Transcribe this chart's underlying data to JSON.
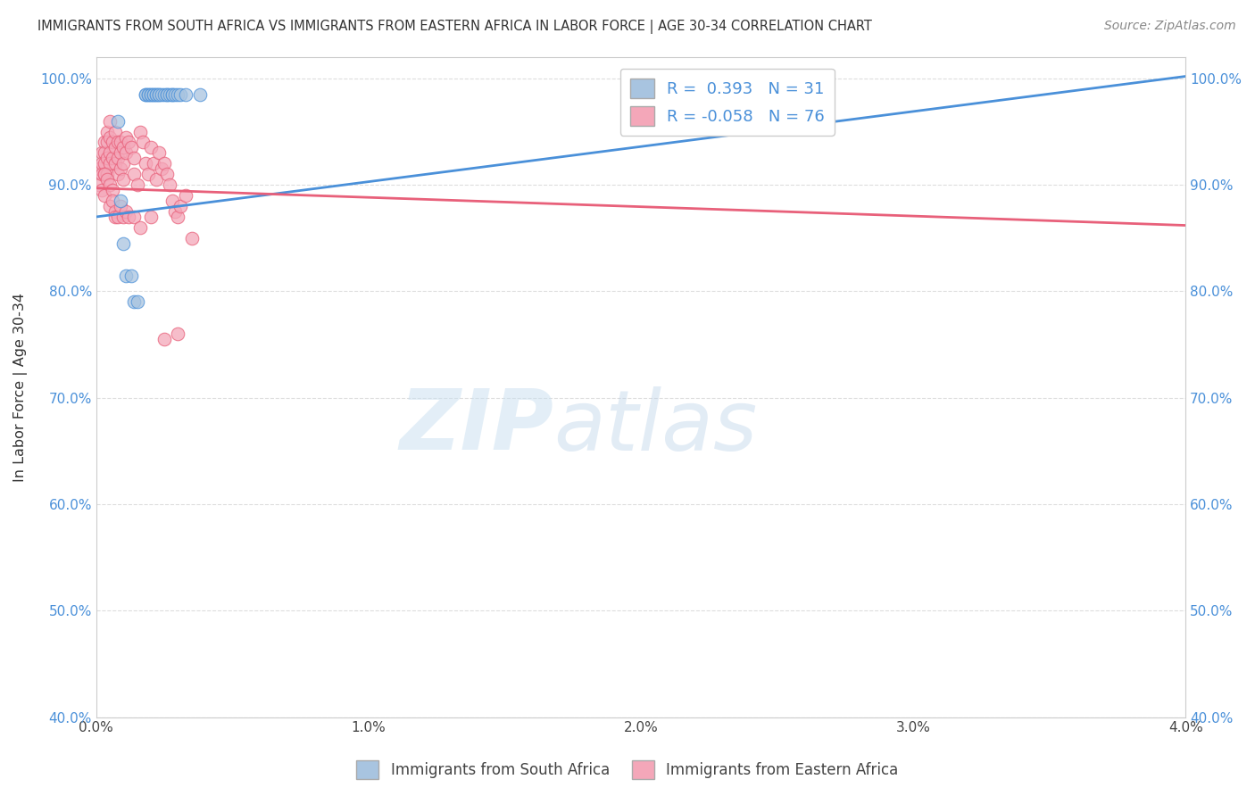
{
  "title": "IMMIGRANTS FROM SOUTH AFRICA VS IMMIGRANTS FROM EASTERN AFRICA IN LABOR FORCE | AGE 30-34 CORRELATION CHART",
  "source": "Source: ZipAtlas.com",
  "ylabel": "In Labor Force | Age 30-34",
  "xlim": [
    0.0,
    0.04
  ],
  "ylim": [
    0.4,
    1.02
  ],
  "blue_R": "0.393",
  "blue_N": "31",
  "pink_R": "-0.058",
  "pink_N": "76",
  "blue_color": "#a8c4e0",
  "pink_color": "#f4a7b9",
  "blue_line_color": "#4a90d9",
  "pink_line_color": "#e8607a",
  "watermark_zip": "ZIP",
  "watermark_atlas": "atlas",
  "legend_label_blue": "Immigrants from South Africa",
  "legend_label_pink": "Immigrants from Eastern Africa",
  "blue_scatter_x": [
    0.0018,
    0.0018,
    0.0019,
    0.0019,
    0.002,
    0.002,
    0.0021,
    0.0021,
    0.0022,
    0.0022,
    0.0023,
    0.0023,
    0.0024,
    0.0025,
    0.0026,
    0.0026,
    0.0027,
    0.0028,
    0.0028,
    0.0029,
    0.003,
    0.0031,
    0.0033,
    0.0008,
    0.0009,
    0.001,
    0.0011,
    0.0013,
    0.0014,
    0.0015,
    0.0038
  ],
  "blue_scatter_y": [
    0.985,
    0.985,
    0.985,
    0.985,
    0.985,
    0.985,
    0.985,
    0.985,
    0.985,
    0.985,
    0.985,
    0.985,
    0.985,
    0.985,
    0.985,
    0.985,
    0.985,
    0.985,
    0.985,
    0.985,
    0.985,
    0.985,
    0.985,
    0.96,
    0.885,
    0.845,
    0.815,
    0.815,
    0.79,
    0.79,
    0.985
  ],
  "pink_scatter_x": [
    0.0001,
    0.0001,
    0.0002,
    0.0002,
    0.0002,
    0.0003,
    0.0003,
    0.0003,
    0.0003,
    0.0004,
    0.0004,
    0.0004,
    0.0004,
    0.0005,
    0.0005,
    0.0005,
    0.0005,
    0.0006,
    0.0006,
    0.0007,
    0.0007,
    0.0007,
    0.0008,
    0.0008,
    0.0008,
    0.0009,
    0.0009,
    0.0009,
    0.001,
    0.001,
    0.001,
    0.0011,
    0.0011,
    0.0012,
    0.0013,
    0.0014,
    0.0014,
    0.0015,
    0.0016,
    0.0017,
    0.0018,
    0.0019,
    0.002,
    0.0021,
    0.0022,
    0.0023,
    0.0024,
    0.0025,
    0.0026,
    0.0027,
    0.0028,
    0.0029,
    0.003,
    0.0031,
    0.0033,
    0.0035,
    0.0002,
    0.0003,
    0.0003,
    0.0004,
    0.0005,
    0.0005,
    0.0006,
    0.0006,
    0.0007,
    0.0007,
    0.0008,
    0.0009,
    0.001,
    0.0011,
    0.0012,
    0.0014,
    0.0016,
    0.002,
    0.0025,
    0.003
  ],
  "pink_scatter_y": [
    0.915,
    0.9,
    0.93,
    0.92,
    0.91,
    0.94,
    0.93,
    0.92,
    0.91,
    0.95,
    0.94,
    0.925,
    0.91,
    0.96,
    0.945,
    0.93,
    0.92,
    0.94,
    0.925,
    0.95,
    0.935,
    0.92,
    0.94,
    0.925,
    0.91,
    0.94,
    0.93,
    0.915,
    0.935,
    0.92,
    0.905,
    0.945,
    0.93,
    0.94,
    0.935,
    0.925,
    0.91,
    0.9,
    0.95,
    0.94,
    0.92,
    0.91,
    0.935,
    0.92,
    0.905,
    0.93,
    0.915,
    0.92,
    0.91,
    0.9,
    0.885,
    0.875,
    0.87,
    0.88,
    0.89,
    0.85,
    0.895,
    0.89,
    0.91,
    0.905,
    0.88,
    0.9,
    0.895,
    0.885,
    0.875,
    0.87,
    0.87,
    0.88,
    0.87,
    0.875,
    0.87,
    0.87,
    0.86,
    0.87,
    0.755,
    0.76
  ]
}
